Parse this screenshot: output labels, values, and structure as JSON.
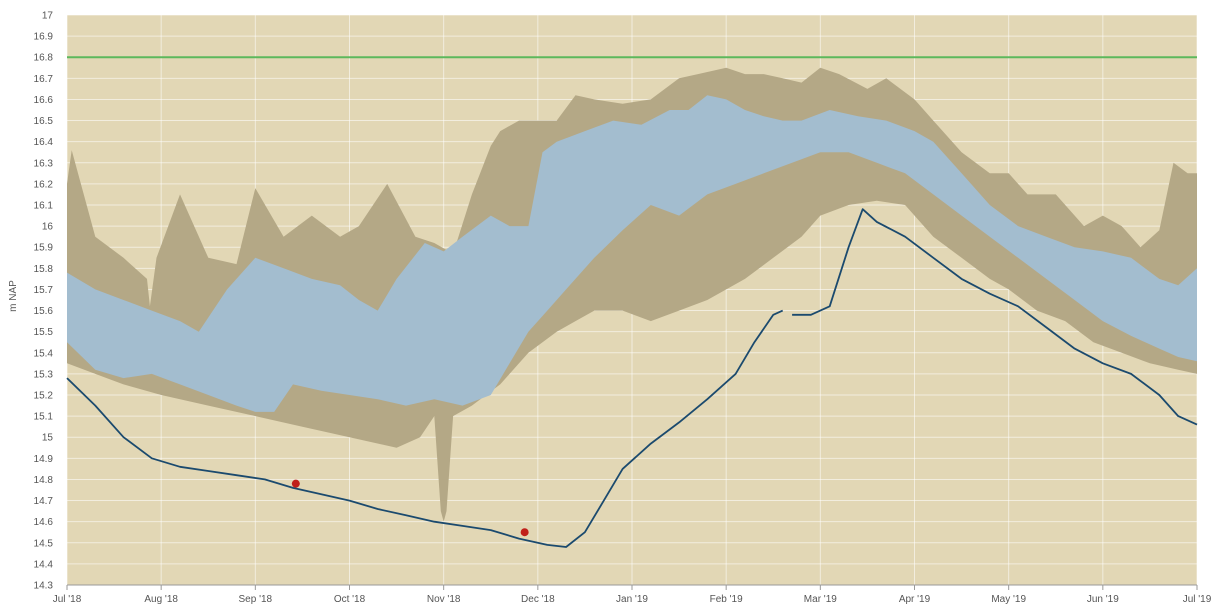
{
  "chart_data": {
    "type": "area",
    "ylabel": "m NAP",
    "ylim": [
      14.3,
      17
    ],
    "y_ticks": [
      "17",
      "16.9",
      "16.8",
      "16.7",
      "16.6",
      "16.5",
      "16.4",
      "16.3",
      "16.2",
      "16.1",
      "16",
      "15.9",
      "15.8",
      "15.7",
      "15.6",
      "15.5",
      "15.4",
      "15.3",
      "15.2",
      "15.1",
      "15",
      "14.9",
      "14.8",
      "14.7",
      "14.6",
      "14.5",
      "14.4",
      "14.3"
    ],
    "x_ticks": [
      "Jul '18",
      "Aug '18",
      "Sep '18",
      "Oct '18",
      "Nov '18",
      "Dec '18",
      "Jan '19",
      "Feb '19",
      "Mar '19",
      "Apr '19",
      "May '19",
      "Jun '19",
      "Jul '19"
    ],
    "xlim": [
      0,
      12
    ],
    "grid": true,
    "reference_line": {
      "y": 16.8,
      "color": "#5cb85c"
    },
    "colors": {
      "plot_background": "#e2d7b5",
      "outer_band": "#b4a886",
      "inner_band": "#a3bdcf",
      "series_line": "#1b4a6e",
      "measurement_points": "#c0201a",
      "reference_line": "#5cb85c"
    },
    "outer_band": {
      "upper": [
        [
          0,
          16.2
        ],
        [
          0.05,
          16.36
        ],
        [
          0.3,
          15.95
        ],
        [
          0.6,
          15.85
        ],
        [
          0.85,
          15.75
        ],
        [
          0.88,
          15.62
        ],
        [
          0.95,
          15.85
        ],
        [
          1.2,
          16.15
        ],
        [
          1.5,
          15.85
        ],
        [
          1.8,
          15.82
        ],
        [
          2.0,
          16.18
        ],
        [
          2.3,
          15.95
        ],
        [
          2.6,
          16.05
        ],
        [
          2.9,
          15.95
        ],
        [
          3.1,
          16.0
        ],
        [
          3.4,
          16.2
        ],
        [
          3.7,
          15.95
        ],
        [
          3.9,
          15.92
        ],
        [
          4.1,
          15.87
        ],
        [
          4.3,
          16.15
        ],
        [
          4.5,
          16.38
        ],
        [
          4.6,
          16.45
        ],
        [
          4.8,
          16.5
        ],
        [
          4.95,
          16.5
        ],
        [
          5.2,
          16.5
        ],
        [
          5.4,
          16.62
        ],
        [
          5.6,
          16.6
        ],
        [
          5.9,
          16.58
        ],
        [
          6.2,
          16.6
        ],
        [
          6.5,
          16.7
        ],
        [
          6.7,
          16.72
        ],
        [
          7.0,
          16.75
        ],
        [
          7.2,
          16.72
        ],
        [
          7.4,
          16.72
        ],
        [
          7.6,
          16.7
        ],
        [
          7.8,
          16.68
        ],
        [
          8.0,
          16.75
        ],
        [
          8.2,
          16.72
        ],
        [
          8.5,
          16.65
        ],
        [
          8.7,
          16.7
        ],
        [
          9.0,
          16.6
        ],
        [
          9.2,
          16.5
        ],
        [
          9.5,
          16.35
        ],
        [
          9.8,
          16.25
        ],
        [
          10.0,
          16.25
        ],
        [
          10.2,
          16.15
        ],
        [
          10.5,
          16.15
        ],
        [
          10.8,
          16.0
        ],
        [
          11.0,
          16.05
        ],
        [
          11.2,
          16.0
        ],
        [
          11.4,
          15.9
        ],
        [
          11.6,
          15.98
        ],
        [
          11.75,
          16.3
        ],
        [
          11.9,
          16.25
        ],
        [
          12.0,
          16.25
        ]
      ],
      "lower": [
        [
          0,
          15.35
        ],
        [
          0.3,
          15.3
        ],
        [
          0.6,
          15.25
        ],
        [
          1.0,
          15.2
        ],
        [
          1.5,
          15.15
        ],
        [
          2.0,
          15.1
        ],
        [
          2.5,
          15.05
        ],
        [
          3.0,
          15.0
        ],
        [
          3.5,
          14.95
        ],
        [
          3.75,
          15.0
        ],
        [
          3.9,
          15.1
        ],
        [
          3.97,
          14.65
        ],
        [
          4.0,
          14.6
        ],
        [
          4.03,
          14.65
        ],
        [
          4.1,
          15.1
        ],
        [
          4.3,
          15.15
        ],
        [
          4.6,
          15.25
        ],
        [
          4.9,
          15.4
        ],
        [
          5.2,
          15.5
        ],
        [
          5.4,
          15.55
        ],
        [
          5.6,
          15.6
        ],
        [
          5.9,
          15.6
        ],
        [
          6.2,
          15.55
        ],
        [
          6.5,
          15.6
        ],
        [
          6.8,
          15.65
        ],
        [
          7.2,
          15.75
        ],
        [
          7.5,
          15.85
        ],
        [
          7.8,
          15.95
        ],
        [
          8.0,
          16.05
        ],
        [
          8.3,
          16.1
        ],
        [
          8.6,
          16.12
        ],
        [
          8.9,
          16.1
        ],
        [
          9.2,
          15.95
        ],
        [
          9.5,
          15.85
        ],
        [
          9.8,
          15.75
        ],
        [
          10.0,
          15.7
        ],
        [
          10.3,
          15.6
        ],
        [
          10.6,
          15.55
        ],
        [
          10.9,
          15.45
        ],
        [
          11.2,
          15.4
        ],
        [
          11.5,
          15.35
        ],
        [
          11.8,
          15.32
        ],
        [
          12.0,
          15.3
        ]
      ]
    },
    "inner_band": {
      "upper": [
        [
          0,
          15.78
        ],
        [
          0.3,
          15.7
        ],
        [
          0.6,
          15.65
        ],
        [
          0.9,
          15.6
        ],
        [
          1.2,
          15.55
        ],
        [
          1.4,
          15.5
        ],
        [
          1.7,
          15.7
        ],
        [
          2.0,
          15.85
        ],
        [
          2.3,
          15.8
        ],
        [
          2.6,
          15.75
        ],
        [
          2.9,
          15.72
        ],
        [
          3.1,
          15.65
        ],
        [
          3.3,
          15.6
        ],
        [
          3.5,
          15.75
        ],
        [
          3.8,
          15.92
        ],
        [
          4.0,
          15.88
        ],
        [
          4.2,
          15.95
        ],
        [
          4.5,
          16.05
        ],
        [
          4.7,
          16.0
        ],
        [
          4.9,
          16.0
        ],
        [
          5.05,
          16.35
        ],
        [
          5.2,
          16.4
        ],
        [
          5.5,
          16.45
        ],
        [
          5.8,
          16.5
        ],
        [
          6.1,
          16.48
        ],
        [
          6.4,
          16.55
        ],
        [
          6.6,
          16.55
        ],
        [
          6.8,
          16.62
        ],
        [
          7.0,
          16.6
        ],
        [
          7.2,
          16.55
        ],
        [
          7.4,
          16.52
        ],
        [
          7.6,
          16.5
        ],
        [
          7.8,
          16.5
        ],
        [
          8.1,
          16.55
        ],
        [
          8.4,
          16.52
        ],
        [
          8.7,
          16.5
        ],
        [
          9.0,
          16.45
        ],
        [
          9.2,
          16.4
        ],
        [
          9.5,
          16.25
        ],
        [
          9.8,
          16.1
        ],
        [
          10.1,
          16.0
        ],
        [
          10.4,
          15.95
        ],
        [
          10.7,
          15.9
        ],
        [
          11.0,
          15.88
        ],
        [
          11.3,
          15.85
        ],
        [
          11.6,
          15.75
        ],
        [
          11.8,
          15.72
        ],
        [
          12.0,
          15.8
        ]
      ],
      "lower": [
        [
          0,
          15.45
        ],
        [
          0.3,
          15.32
        ],
        [
          0.6,
          15.28
        ],
        [
          0.9,
          15.3
        ],
        [
          1.2,
          15.25
        ],
        [
          1.5,
          15.2
        ],
        [
          1.8,
          15.15
        ],
        [
          2.0,
          15.12
        ],
        [
          2.2,
          15.12
        ],
        [
          2.4,
          15.25
        ],
        [
          2.7,
          15.22
        ],
        [
          3.0,
          15.2
        ],
        [
          3.3,
          15.18
        ],
        [
          3.6,
          15.15
        ],
        [
          3.9,
          15.18
        ],
        [
          4.2,
          15.15
        ],
        [
          4.5,
          15.2
        ],
        [
          4.7,
          15.35
        ],
        [
          4.9,
          15.5
        ],
        [
          5.1,
          15.6
        ],
        [
          5.3,
          15.7
        ],
        [
          5.6,
          15.85
        ],
        [
          5.9,
          15.98
        ],
        [
          6.2,
          16.1
        ],
        [
          6.5,
          16.05
        ],
        [
          6.8,
          16.15
        ],
        [
          7.1,
          16.2
        ],
        [
          7.4,
          16.25
        ],
        [
          7.7,
          16.3
        ],
        [
          8.0,
          16.35
        ],
        [
          8.3,
          16.35
        ],
        [
          8.6,
          16.3
        ],
        [
          8.9,
          16.25
        ],
        [
          9.2,
          16.15
        ],
        [
          9.5,
          16.05
        ],
        [
          9.8,
          15.95
        ],
        [
          10.1,
          15.85
        ],
        [
          10.4,
          15.75
        ],
        [
          10.7,
          15.65
        ],
        [
          11.0,
          15.55
        ],
        [
          11.3,
          15.48
        ],
        [
          11.6,
          15.42
        ],
        [
          11.8,
          15.38
        ],
        [
          12.0,
          15.36
        ]
      ]
    },
    "series": [
      {
        "color": "#1b4a6e",
        "segments": [
          [
            [
              0,
              15.28
            ],
            [
              0.3,
              15.15
            ],
            [
              0.6,
              15.0
            ],
            [
              0.9,
              14.9
            ],
            [
              1.2,
              14.86
            ],
            [
              1.5,
              14.84
            ],
            [
              1.8,
              14.82
            ],
            [
              2.1,
              14.8
            ],
            [
              2.4,
              14.76
            ],
            [
              2.7,
              14.73
            ],
            [
              3.0,
              14.7
            ],
            [
              3.3,
              14.66
            ],
            [
              3.6,
              14.63
            ],
            [
              3.9,
              14.6
            ],
            [
              4.2,
              14.58
            ],
            [
              4.5,
              14.56
            ],
            [
              4.8,
              14.52
            ],
            [
              5.1,
              14.49
            ],
            [
              5.3,
              14.48
            ],
            [
              5.5,
              14.55
            ],
            [
              5.7,
              14.7
            ],
            [
              5.9,
              14.85
            ],
            [
              6.2,
              14.97
            ],
            [
              6.5,
              15.07
            ],
            [
              6.8,
              15.18
            ],
            [
              7.1,
              15.3
            ],
            [
              7.3,
              15.45
            ],
            [
              7.5,
              15.58
            ],
            [
              7.6,
              15.6
            ]
          ],
          [
            [
              7.7,
              15.58
            ],
            [
              7.9,
              15.58
            ],
            [
              8.1,
              15.62
            ],
            [
              8.3,
              15.9
            ],
            [
              8.45,
              16.08
            ],
            [
              8.6,
              16.02
            ],
            [
              8.9,
              15.95
            ],
            [
              9.2,
              15.85
            ],
            [
              9.5,
              15.75
            ],
            [
              9.8,
              15.68
            ],
            [
              10.1,
              15.62
            ],
            [
              10.4,
              15.52
            ],
            [
              10.7,
              15.42
            ],
            [
              11.0,
              15.35
            ],
            [
              11.3,
              15.3
            ],
            [
              11.6,
              15.2
            ],
            [
              11.8,
              15.1
            ],
            [
              12.0,
              15.06
            ]
          ]
        ]
      }
    ],
    "points": [
      [
        2.43,
        14.78
      ],
      [
        4.86,
        14.55
      ]
    ]
  }
}
